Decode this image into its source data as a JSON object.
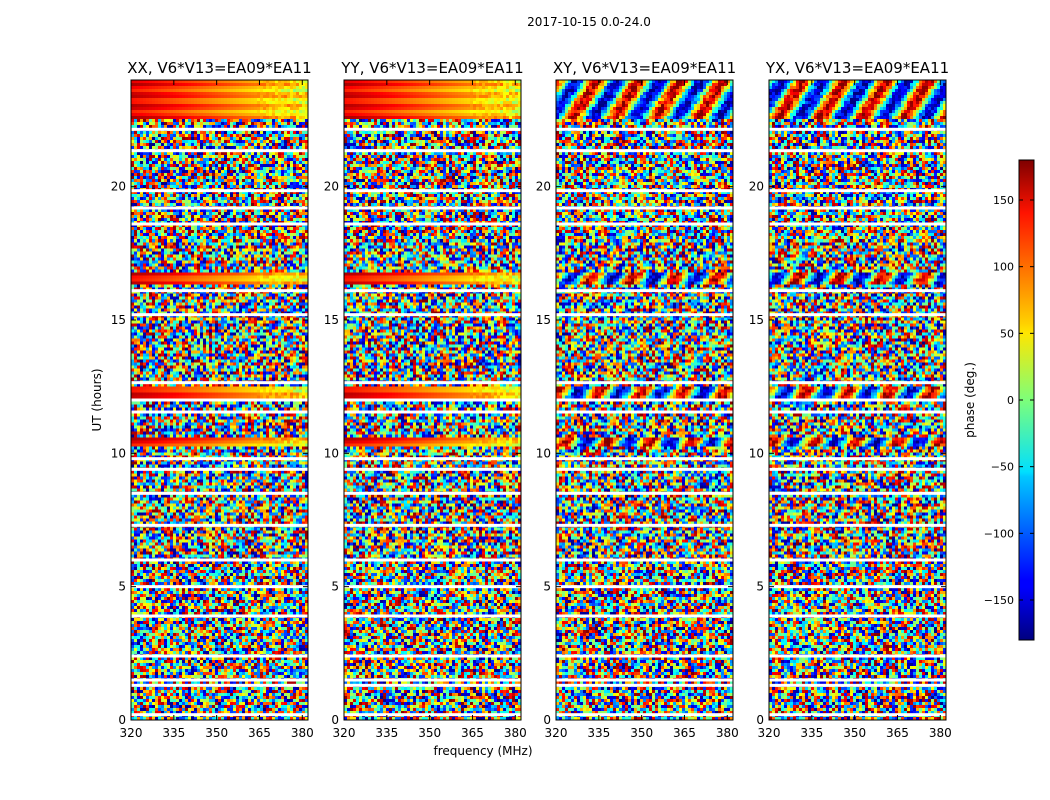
{
  "figure": {
    "suptitle": "2017-10-15 0.0-24.0"
  },
  "chart_data": {
    "type": "heatmap",
    "xlabel": "frequency (MHz)",
    "ylabel": "UT (hours)",
    "xlim": [
      320,
      382
    ],
    "ylim": [
      0,
      24
    ],
    "x_ticks": [
      320,
      335,
      350,
      365,
      380
    ],
    "y_ticks": [
      0,
      5,
      10,
      15,
      20
    ],
    "colorbar": {
      "label": "phase (deg.)",
      "colormap": "jet",
      "range": [
        -180,
        180
      ],
      "ticks": [
        150,
        100,
        50,
        0,
        -50,
        -100,
        -150
      ]
    },
    "panels": [
      {
        "title": "XX, V6*V13=EA09*EA11"
      },
      {
        "title": "YY, V6*V13=EA09*EA11"
      },
      {
        "title": "XY, V6*V13=EA09*EA11"
      },
      {
        "title": "YX, V6*V13=EA09*EA11"
      }
    ],
    "coherent_bands_hours": [
      [
        22.5,
        24.0
      ],
      [
        16.3,
        16.8
      ],
      [
        12.1,
        12.5
      ],
      [
        10.2,
        10.55
      ]
    ],
    "gap_rows_hours": [
      22.15,
      21.35,
      19.85,
      19.2,
      18.6,
      16.1,
      15.2,
      12.65,
      12.0,
      11.55,
      9.8,
      9.4,
      8.5,
      7.3,
      6.0,
      5.0,
      3.9,
      2.4,
      1.5,
      1.3,
      0.2
    ]
  }
}
